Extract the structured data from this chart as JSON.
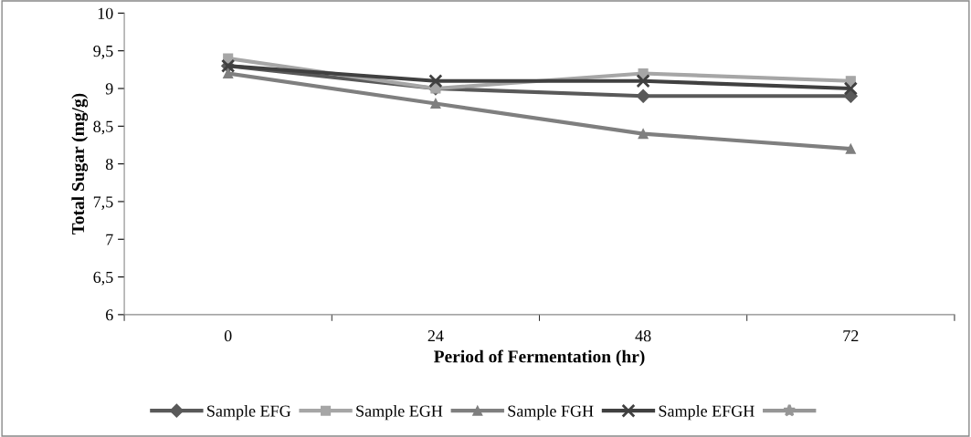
{
  "chart_data": {
    "type": "line",
    "xlabel": "Period of Fermentation (hr)",
    "ylabel": "Total Sugar (mg/g)",
    "categories": [
      "0",
      "24",
      "48",
      "72"
    ],
    "series": [
      {
        "name": "Sample EFG",
        "color": "#595959",
        "marker": "diamond",
        "values": [
          9.3,
          9.0,
          8.9,
          8.9
        ]
      },
      {
        "name": "Sample EGH",
        "color": "#a6a6a6",
        "marker": "square",
        "values": [
          9.4,
          9.0,
          9.2,
          9.1
        ]
      },
      {
        "name": "Sample FGH",
        "color": "#7f7f7f",
        "marker": "triangle",
        "values": [
          9.2,
          8.8,
          8.4,
          8.2
        ]
      },
      {
        "name": "Sample EFGH",
        "color": "#404040",
        "marker": "cross",
        "values": [
          9.3,
          9.1,
          9.1,
          9.0
        ]
      },
      {
        "color": "#969696",
        "marker": "star",
        "values": [
          null,
          null,
          null,
          null
        ]
      }
    ],
    "ylim": [
      6,
      10
    ],
    "yticks": [
      6,
      {
        "value": 6.5,
        "label": "6,5"
      },
      7,
      {
        "value": 7.5,
        "label": "7,5"
      },
      8,
      {
        "value": 8.5,
        "label": "8,5"
      },
      9,
      {
        "value": 9.5,
        "label": "9,5"
      },
      10
    ],
    "grid": false,
    "legend": "bottom",
    "line_style": "solid"
  }
}
